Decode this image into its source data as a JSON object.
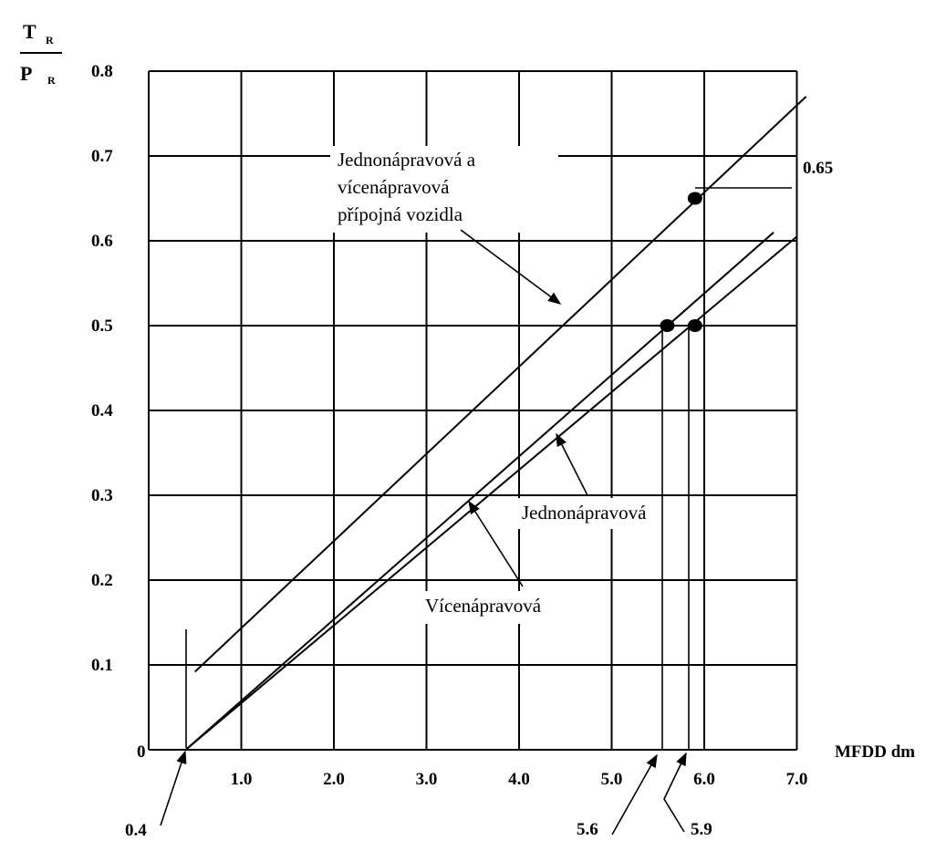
{
  "chart_data": {
    "type": "line",
    "ylabel": {
      "top": "T",
      "top_sub": "R",
      "bottom": "P",
      "bottom_sub": "R"
    },
    "xlabel": "MFDD dm",
    "xlim": [
      0,
      7.0
    ],
    "ylim": [
      0,
      0.8
    ],
    "x_ticks": [
      "1.0",
      "2.0",
      "3.0",
      "4.0",
      "5.0",
      "6.0",
      "7.0"
    ],
    "y_ticks": [
      "0.1",
      "0.2",
      "0.3",
      "0.4",
      "0.5",
      "0.6",
      "0.7",
      "0.8"
    ],
    "origin_label": "0",
    "grid": true,
    "series": [
      {
        "label_ref": 0,
        "x": [
          0.5,
          7.1
        ],
        "y": [
          0.092,
          0.77
        ]
      },
      {
        "label_ref": 1,
        "x": [
          0.4,
          6.75
        ],
        "y": [
          0.0,
          0.61
        ]
      },
      {
        "label_ref": 2,
        "x": [
          0.4,
          7.0
        ],
        "y": [
          0.0,
          0.605
        ]
      }
    ],
    "markers": [
      {
        "x": 5.9,
        "y": 0.65
      },
      {
        "x": 5.6,
        "y": 0.5
      },
      {
        "x": 5.9,
        "y": 0.5
      }
    ],
    "annotations": {
      "trailer_lines": [
        "Jednonápravová a",
        "vícenápravová",
        "přípojná vozidla"
      ],
      "single_axle": "Jednonápravová",
      "multi_axle": "Vícenápravová",
      "value_065": "0.65",
      "x_04": "0.4",
      "x_56": "5.6",
      "x_59": "5.9"
    }
  }
}
